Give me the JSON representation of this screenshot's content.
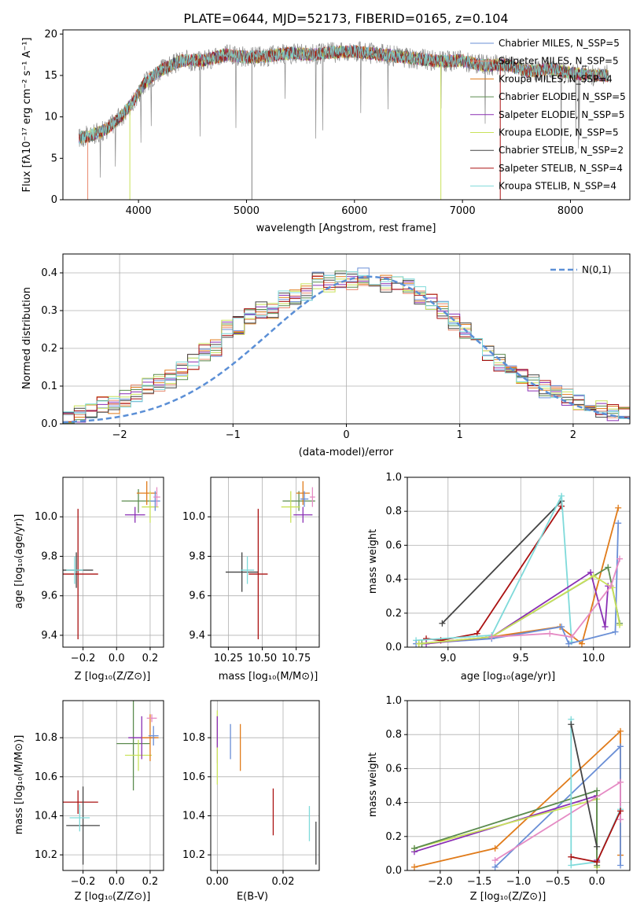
{
  "title": "PLATE=0644, MJD=52173, FIBERID=0165, z=0.104",
  "colors": {
    "chabrier_miles": "#6a8fd6",
    "salpeter_miles": "#e8896e",
    "kroupa_miles": "#e07b1a",
    "chabrier_elodie": "#5b8b4f",
    "salpeter_elodie": "#8a2fb4",
    "kroupa_elodie": "#c9e25a",
    "chabrier_stelib": "#444444",
    "salpeter_stelib": "#aa1111",
    "kroupa_stelib": "#7fdada",
    "pink": "#e58bc4",
    "spectrum": "#808080",
    "normal": "#5b8fd6",
    "grid": "#b0b0b0"
  },
  "chart_data": [
    {
      "type": "line",
      "title": "PLATE=0644, MJD=52173, FIBERID=0165, z=0.104",
      "xlabel": "wavelength [Angstrom, rest frame]",
      "ylabel": "Flux [fλ10⁻¹⁷ erg cm⁻² s⁻¹ A⁻¹]",
      "xlim": [
        3300,
        8550
      ],
      "ylim": [
        0,
        20.5
      ],
      "xticks": [
        4000,
        5000,
        6000,
        7000,
        8000
      ],
      "yticks": [
        0,
        5,
        10,
        15,
        20
      ],
      "legend_position": "right",
      "x": [
        3450,
        3550,
        3700,
        3850,
        3950,
        4050,
        4200,
        4400,
        4600,
        4800,
        5000,
        5200,
        5400,
        5600,
        5800,
        6000,
        6200,
        6400,
        6600,
        6800,
        7000,
        7200,
        7400,
        7600,
        7800,
        8000,
        8200,
        8350
      ],
      "y": [
        7.5,
        7.7,
        8.5,
        10.2,
        11.8,
        14.0,
        15.6,
        16.8,
        16.8,
        17.5,
        17.2,
        17.3,
        17.7,
        17.5,
        17.8,
        17.9,
        17.6,
        17.3,
        17.0,
        16.7,
        16.8,
        16.2,
        16.3,
        15.5,
        15.8,
        15.3,
        15.0,
        15.0
      ],
      "series_names": [
        "Chabrier MILES, N_SSP=5",
        "Salpeter MILES, N_SSP=5",
        "Kroupa MILES, N_SSP=4",
        "Chabrier ELODIE, N_SSP=5",
        "Salpeter ELODIE, N_SSP=5",
        "Kroupa ELODIE, N_SSP=5",
        "Chabrier STELIB, N_SSP=2",
        "Salpeter STELIB, N_SSP=4",
        "Kroupa STELIB, N_SSP=4"
      ]
    },
    {
      "type": "bar",
      "xlabel": "(data-model)/error",
      "ylabel": "Normed distribution",
      "xlim": [
        -2.5,
        2.5
      ],
      "ylim": [
        0,
        0.45
      ],
      "xticks": [
        -2,
        -1,
        0,
        1,
        2
      ],
      "yticks": [
        0.0,
        0.1,
        0.2,
        0.3,
        0.4
      ],
      "legend": "N(0,1)",
      "bin_centers": [
        -2.45,
        -2.35,
        -2.25,
        -2.15,
        -2.05,
        -1.95,
        -1.85,
        -1.75,
        -1.65,
        -1.55,
        -1.45,
        -1.35,
        -1.25,
        -1.15,
        -1.05,
        -0.95,
        -0.85,
        -0.75,
        -0.65,
        -0.55,
        -0.45,
        -0.35,
        -0.25,
        -0.15,
        -0.05,
        0.05,
        0.15,
        0.25,
        0.35,
        0.45,
        0.55,
        0.65,
        0.75,
        0.85,
        0.95,
        1.05,
        1.15,
        1.25,
        1.35,
        1.45,
        1.55,
        1.65,
        1.75,
        1.85,
        1.95,
        2.05,
        2.15,
        2.25,
        2.35,
        2.45
      ],
      "values": [
        0.025,
        0.028,
        0.035,
        0.055,
        0.05,
        0.065,
        0.08,
        0.1,
        0.11,
        0.12,
        0.14,
        0.16,
        0.19,
        0.2,
        0.25,
        0.26,
        0.28,
        0.3,
        0.3,
        0.33,
        0.34,
        0.35,
        0.38,
        0.37,
        0.38,
        0.38,
        0.39,
        0.38,
        0.37,
        0.37,
        0.36,
        0.34,
        0.32,
        0.3,
        0.27,
        0.25,
        0.22,
        0.19,
        0.16,
        0.14,
        0.13,
        0.11,
        0.09,
        0.08,
        0.07,
        0.055,
        0.05,
        0.04,
        0.03,
        0.025
      ]
    },
    {
      "type": "scatter",
      "xlabel": "Z [log₁₀(Z/Z⊙)]",
      "ylabel": "age  [log₁₀(age/yr)]",
      "xlim": [
        -0.32,
        0.28
      ],
      "ylim": [
        9.34,
        10.2
      ],
      "xticks": [
        -0.2,
        0.0,
        0.2
      ],
      "xticklabels": [
        "−0.2",
        "0.0",
        "0.2"
      ],
      "yticks": [
        9.4,
        9.6,
        9.8,
        10.0
      ],
      "points": [
        {
          "x": -0.24,
          "y": 9.73,
          "xerr": 0.1,
          "yerr": 0.09,
          "c": "chabrier_stelib"
        },
        {
          "x": -0.23,
          "y": 9.71,
          "xerr": 0.12,
          "yerr": 0.33,
          "c": "salpeter_stelib"
        },
        {
          "x": -0.25,
          "y": 9.73,
          "xerr": 0.05,
          "yerr": 0.07,
          "c": "kroupa_stelib"
        },
        {
          "x": 0.13,
          "y": 10.08,
          "xerr": 0.1,
          "yerr": 0.06,
          "c": "chabrier_elodie"
        },
        {
          "x": 0.18,
          "y": 10.12,
          "xerr": 0.06,
          "yerr": 0.06,
          "c": "kroupa_miles"
        },
        {
          "x": 0.2,
          "y": 10.05,
          "xerr": 0.05,
          "yerr": 0.08,
          "c": "kroupa_elodie"
        },
        {
          "x": 0.11,
          "y": 10.01,
          "xerr": 0.06,
          "yerr": 0.04,
          "c": "salpeter_elodie"
        },
        {
          "x": 0.23,
          "y": 10.08,
          "xerr": 0.03,
          "yerr": 0.05,
          "c": "chabrier_miles"
        },
        {
          "x": 0.24,
          "y": 10.1,
          "xerr": 0.02,
          "yerr": 0.05,
          "c": "pink"
        }
      ]
    },
    {
      "type": "scatter",
      "xlabel": "mass [log₁₀(M/M⊙)]",
      "ylabel": "",
      "xlim": [
        10.12,
        10.92
      ],
      "ylim": [
        9.34,
        10.2
      ],
      "xticks": [
        10.25,
        10.5,
        10.75
      ],
      "xticklabels": [
        "10.25",
        "10.50",
        "10.75"
      ],
      "yticks": [
        9.4,
        9.6,
        9.8,
        10.0
      ],
      "points": [
        {
          "x": 10.35,
          "y": 9.72,
          "xerr": 0.12,
          "yerr": 0.1,
          "c": "chabrier_stelib"
        },
        {
          "x": 10.47,
          "y": 9.71,
          "xerr": 0.07,
          "yerr": 0.33,
          "c": "salpeter_stelib"
        },
        {
          "x": 10.39,
          "y": 9.73,
          "xerr": 0.05,
          "yerr": 0.07,
          "c": "kroupa_stelib"
        },
        {
          "x": 10.77,
          "y": 10.08,
          "xerr": 0.12,
          "yerr": 0.05,
          "c": "chabrier_elodie"
        },
        {
          "x": 10.8,
          "y": 10.12,
          "xerr": 0.05,
          "yerr": 0.06,
          "c": "kroupa_miles"
        },
        {
          "x": 10.71,
          "y": 10.05,
          "xerr": 0.07,
          "yerr": 0.08,
          "c": "kroupa_elodie"
        },
        {
          "x": 10.8,
          "y": 10.01,
          "xerr": 0.07,
          "yerr": 0.04,
          "c": "salpeter_elodie"
        },
        {
          "x": 10.81,
          "y": 10.09,
          "xerr": 0.03,
          "yerr": 0.04,
          "c": "chabrier_miles"
        },
        {
          "x": 10.87,
          "y": 10.1,
          "xerr": 0.02,
          "yerr": 0.05,
          "c": "pink"
        }
      ]
    },
    {
      "type": "line",
      "xlabel": "age  [log₁₀(age/yr)]",
      "ylabel": "mass weight",
      "xlim": [
        8.72,
        10.25
      ],
      "ylim": [
        0,
        1.0
      ],
      "xticks": [
        9.0,
        9.5,
        10.0
      ],
      "xticklabels": [
        "9.0",
        "9.5",
        "10.0"
      ],
      "yticks": [
        0.0,
        0.2,
        0.4,
        0.6,
        0.8,
        1.0
      ],
      "series": [
        {
          "c": "chabrier_stelib",
          "x": [
            8.96,
            9.78
          ],
          "y": [
            0.14,
            0.86
          ]
        },
        {
          "c": "salpeter_stelib",
          "x": [
            8.85,
            8.95,
            9.2,
            9.78
          ],
          "y": [
            0.05,
            0.04,
            0.08,
            0.83
          ]
        },
        {
          "c": "kroupa_stelib",
          "x": [
            8.78,
            9.3,
            9.78,
            9.85
          ],
          "y": [
            0.04,
            0.07,
            0.89,
            0.03
          ]
        },
        {
          "c": "kroupa_miles",
          "x": [
            8.8,
            9.3,
            9.77,
            9.92,
            10.17
          ],
          "y": [
            0.02,
            0.06,
            0.12,
            0.02,
            0.82
          ]
        },
        {
          "c": "chabrier_miles",
          "x": [
            8.78,
            9.3,
            9.78,
            9.83,
            10.15,
            10.17
          ],
          "y": [
            0.02,
            0.05,
            0.12,
            0.02,
            0.09,
            0.73
          ]
        },
        {
          "c": "chabrier_elodie",
          "x": [
            8.82,
            9.3,
            10.1,
            10.18
          ],
          "y": [
            0.02,
            0.06,
            0.47,
            0.14
          ]
        },
        {
          "c": "salpeter_elodie",
          "x": [
            8.85,
            9.3,
            9.98,
            10.08,
            10.1
          ],
          "y": [
            0.02,
            0.06,
            0.44,
            0.12,
            0.36
          ]
        },
        {
          "c": "kroupa_elodie",
          "x": [
            8.8,
            9.3,
            10.0,
            10.13,
            10.18
          ],
          "y": [
            0.02,
            0.06,
            0.42,
            0.35,
            0.13
          ]
        },
        {
          "c": "pink",
          "x": [
            9.3,
            9.7,
            9.85,
            10.12,
            10.18
          ],
          "y": [
            0.06,
            0.08,
            0.06,
            0.36,
            0.52
          ]
        }
      ]
    },
    {
      "type": "scatter",
      "xlabel": "Z [log₁₀(Z/Z⊙)]",
      "ylabel": "mass [log₁₀(M/M⊙)]",
      "xlim": [
        -0.32,
        0.28
      ],
      "ylim": [
        10.12,
        10.99
      ],
      "xticks": [
        -0.2,
        0.0,
        0.2
      ],
      "xticklabels": [
        "−0.2",
        "0.0",
        "0.2"
      ],
      "yticks": [
        10.2,
        10.4,
        10.6,
        10.8
      ],
      "points": [
        {
          "x": -0.23,
          "y": 10.47,
          "xerr": 0.12,
          "yerr": 0.06,
          "c": "salpeter_stelib"
        },
        {
          "x": -0.2,
          "y": 10.35,
          "xerr": 0.1,
          "yerr": 0.2,
          "c": "chabrier_stelib"
        },
        {
          "x": -0.22,
          "y": 10.39,
          "xerr": 0.06,
          "yerr": 0.07,
          "c": "kroupa_stelib"
        },
        {
          "x": 0.1,
          "y": 10.77,
          "xerr": 0.1,
          "yerr": 0.24,
          "c": "chabrier_elodie"
        },
        {
          "x": 0.13,
          "y": 10.71,
          "xerr": 0.08,
          "yerr": 0.08,
          "c": "kroupa_elodie"
        },
        {
          "x": 0.15,
          "y": 10.8,
          "xerr": 0.08,
          "yerr": 0.11,
          "c": "salpeter_elodie"
        },
        {
          "x": 0.2,
          "y": 10.8,
          "xerr": 0.05,
          "yerr": 0.12,
          "c": "kroupa_miles"
        },
        {
          "x": 0.22,
          "y": 10.81,
          "xerr": 0.03,
          "yerr": 0.05,
          "c": "chabrier_miles"
        },
        {
          "x": 0.21,
          "y": 10.9,
          "xerr": 0.03,
          "yerr": 0.02,
          "c": "pink"
        }
      ]
    },
    {
      "type": "scatter",
      "xlabel": "E(B-V)",
      "ylabel": "",
      "xlim": [
        -0.002,
        0.031
      ],
      "ylim": [
        10.12,
        10.99
      ],
      "xticks": [
        0.0,
        0.02
      ],
      "xticklabels": [
        "0.00",
        "0.02"
      ],
      "yticks": [
        10.2,
        10.4,
        10.6,
        10.8
      ],
      "points": [
        {
          "x": 0.0,
          "y": 10.79,
          "xerr": 0,
          "yerr": 0.12,
          "c": "pink"
        },
        {
          "x": 0.0,
          "y": 10.75,
          "xerr": 0,
          "yerr": 0.19,
          "c": "kroupa_elodie"
        },
        {
          "x": 0.0,
          "y": 10.83,
          "xerr": 0,
          "yerr": 0.08,
          "c": "salpeter_elodie"
        },
        {
          "x": 0.004,
          "y": 10.78,
          "xerr": 0,
          "yerr": 0.09,
          "c": "chabrier_miles"
        },
        {
          "x": 0.007,
          "y": 10.75,
          "xerr": 0,
          "yerr": 0.12,
          "c": "kroupa_miles"
        },
        {
          "x": 0.017,
          "y": 10.42,
          "xerr": 0,
          "yerr": 0.12,
          "c": "salpeter_stelib"
        },
        {
          "x": 0.028,
          "y": 10.36,
          "xerr": 0,
          "yerr": 0.09,
          "c": "kroupa_stelib"
        },
        {
          "x": 0.03,
          "y": 10.26,
          "xerr": 0,
          "yerr": 0.11,
          "c": "chabrier_stelib"
        }
      ]
    },
    {
      "type": "line",
      "xlabel": "Z [log₁₀(Z/Z⊙)]",
      "ylabel": "mass weight",
      "xlim": [
        -2.42,
        0.42
      ],
      "ylim": [
        0,
        1.0
      ],
      "xticks": [
        -2.0,
        -1.5,
        -1.0,
        -0.5,
        0.0
      ],
      "xticklabels": [
        "−2.0",
        "−1.5",
        "−1.0",
        "−0.5",
        "0.0"
      ],
      "yticks": [
        0.0,
        0.2,
        0.4,
        0.6,
        0.8,
        1.0
      ],
      "series": [
        {
          "c": "kroupa_miles",
          "x": [
            -2.33,
            -1.3,
            0.3,
            0.3
          ],
          "y": [
            0.02,
            0.13,
            0.82,
            0.09
          ]
        },
        {
          "c": "chabrier_miles",
          "x": [
            -1.3,
            0.3,
            0.3
          ],
          "y": [
            0.02,
            0.73,
            0.03
          ]
        },
        {
          "c": "salpeter_elodie",
          "x": [
            -2.33,
            0.0,
            0.0
          ],
          "y": [
            0.11,
            0.44,
            0.06
          ]
        },
        {
          "c": "kroupa_elodie",
          "x": [
            -2.33,
            0.0,
            0.0
          ],
          "y": [
            0.13,
            0.42,
            0.02
          ]
        },
        {
          "c": "chabrier_elodie",
          "x": [
            -2.33,
            0.0,
            0.0
          ],
          "y": [
            0.13,
            0.47,
            0.03
          ]
        },
        {
          "c": "pink",
          "x": [
            -1.3,
            0.3,
            0.3
          ],
          "y": [
            0.06,
            0.52,
            0.3
          ]
        },
        {
          "c": "kroupa_stelib",
          "x": [
            -0.33,
            -0.33,
            0.0,
            0.3
          ],
          "y": [
            0.89,
            0.03,
            0.05,
            0.36
          ]
        },
        {
          "c": "salpeter_stelib",
          "x": [
            -0.33,
            0.0,
            0.3
          ],
          "y": [
            0.08,
            0.05,
            0.35
          ]
        },
        {
          "c": "chabrier_stelib",
          "x": [
            -0.33,
            0.0
          ],
          "y": [
            0.86,
            0.14
          ]
        }
      ]
    }
  ]
}
